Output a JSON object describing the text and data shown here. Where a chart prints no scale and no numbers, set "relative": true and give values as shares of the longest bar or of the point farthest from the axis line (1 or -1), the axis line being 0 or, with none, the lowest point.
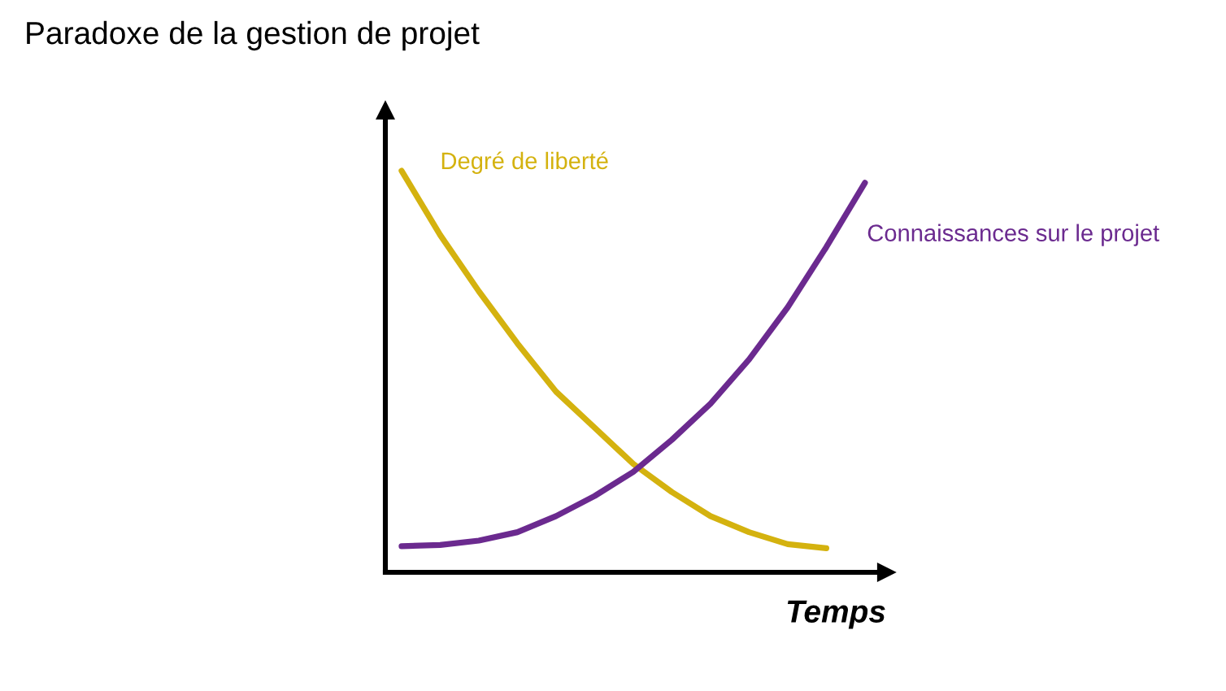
{
  "chart_data": {
    "type": "line",
    "title": "Paradoxe de la gestion de projet",
    "xlabel": "Temps",
    "relative": true,
    "categories": [
      null,
      null,
      null,
      null,
      null,
      null,
      null,
      null,
      null,
      null,
      null,
      null,
      null
    ],
    "series": [
      {
        "name": "Degré de liberté",
        "color": "#d4b20f",
        "values": [
          1,
          0.84,
          0.7,
          0.57,
          0.45,
          0.36,
          0.27,
          0.2,
          0.14,
          0.1,
          0.07,
          0.06,
          null
        ]
      },
      {
        "name": "Connaissances sur le projet",
        "color": "#6b2a8f",
        "values": [
          0.065,
          0.068,
          0.079,
          0.1,
          0.14,
          0.19,
          0.25,
          0.33,
          0.42,
          0.53,
          0.66,
          0.81,
          0.97
        ]
      }
    ],
    "legend": false,
    "marker": "none",
    "line_style": "solid"
  }
}
